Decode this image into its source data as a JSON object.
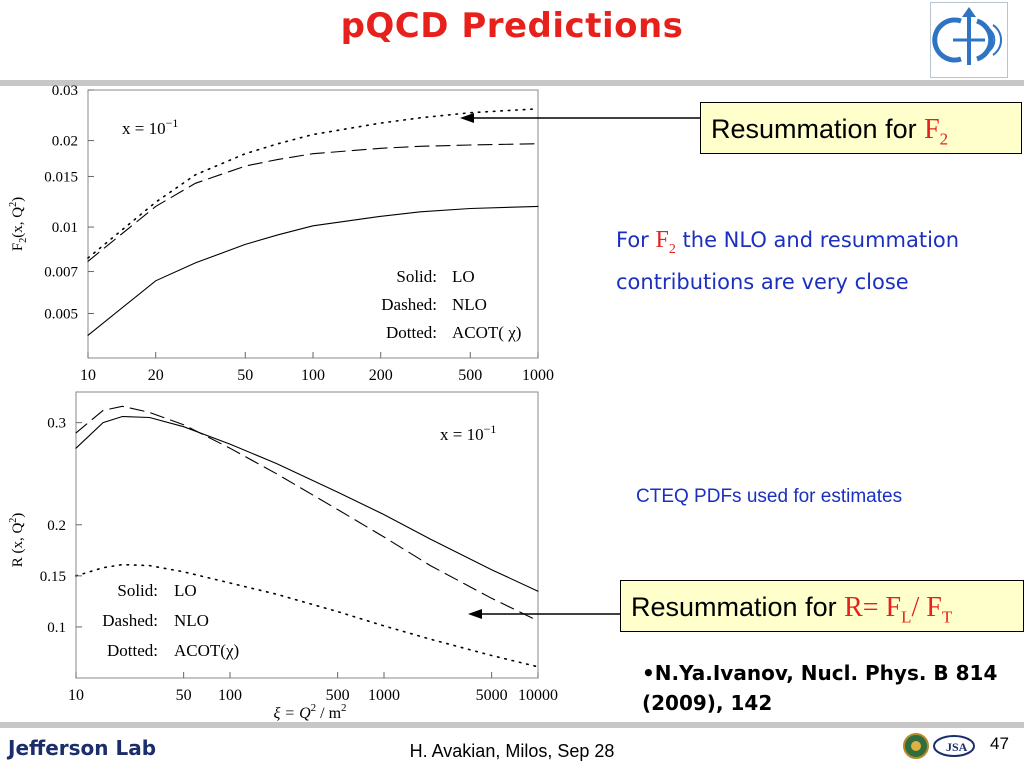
{
  "slide": {
    "title": "pQCD Predictions",
    "callout_top": {
      "prefix": "Resummation for ",
      "formula_main": "F",
      "formula_sub": "2"
    },
    "note_top": {
      "pre": "For ",
      "f_main": "F",
      "f_sub": "2",
      "post": "  the NLO and resummation contributions  are  very  close"
    },
    "note_mid": "CTEQ PDFs used for estimates",
    "callout_bottom": {
      "prefix": "Resummation for ",
      "r_eq": "R= F",
      "sub_l": "L",
      "slash": "/ F",
      "sub_t": "T"
    },
    "reference": {
      "line1": "•N.Ya.Ivanov, Nucl. Phys. B 814",
      "line2": "(2009), 142"
    },
    "footer": {
      "text": "H. Avakian, Milos,  Sep 28",
      "page": "47"
    },
    "logo_text": "Jefferson Lab",
    "colors": {
      "title": "#e8201c",
      "note": "#1b2fc0",
      "callout_bg": "#ffffcc"
    }
  },
  "chart_data": [
    {
      "type": "line",
      "ylabel_main": "F",
      "ylabel_sub": "2",
      "ylabel_rest": "(x, Q",
      "ylabel_sup": "2",
      "ylabel_end": ")",
      "x_scale": "log",
      "y_scale": "log",
      "xlim": [
        10,
        1000
      ],
      "ylim": [
        0.0035,
        0.03
      ],
      "x_ticks": [
        10,
        20,
        50,
        100,
        200,
        500,
        1000
      ],
      "x_tick_labels": [
        "10",
        "20",
        "50",
        "100",
        "200",
        "500",
        "1000"
      ],
      "y_ticks": [
        0.005,
        0.007,
        0.01,
        0.015,
        0.02,
        0.03
      ],
      "y_tick_labels": [
        "0.005",
        "0.007",
        "0.01",
        "0.015",
        "0.02",
        "0.03"
      ],
      "annotation": {
        "main": "x = 10",
        "sup": "−1"
      },
      "legend": {
        "placement": "bottom-right",
        "entries": [
          {
            "style": "Solid:",
            "label": "LO"
          },
          {
            "style": "Dashed:",
            "label": "NLO"
          },
          {
            "style": "Dotted:",
            "label": "ACOT( χ)"
          }
        ]
      },
      "series": [
        {
          "style": "solid",
          "x": [
            10,
            20,
            30,
            50,
            70,
            100,
            200,
            300,
            500,
            1000
          ],
          "values": [
            0.0042,
            0.0065,
            0.0075,
            0.0087,
            0.0094,
            0.0101,
            0.0109,
            0.0113,
            0.0116,
            0.0118
          ]
        },
        {
          "style": "dashed",
          "x": [
            10,
            20,
            30,
            50,
            70,
            100,
            200,
            300,
            500,
            1000
          ],
          "values": [
            0.0076,
            0.0118,
            0.0142,
            0.0163,
            0.0172,
            0.018,
            0.0188,
            0.0191,
            0.0193,
            0.0195
          ]
        },
        {
          "style": "dotted",
          "x": [
            10,
            20,
            30,
            50,
            70,
            100,
            200,
            300,
            500,
            1000
          ],
          "values": [
            0.0078,
            0.0122,
            0.0152,
            0.018,
            0.0195,
            0.021,
            0.023,
            0.024,
            0.025,
            0.0258
          ]
        }
      ]
    },
    {
      "type": "line",
      "ylabel_main": "R (x, Q",
      "ylabel_sup": "2",
      "ylabel_end": ")",
      "xlabel_main": "ξ = Q",
      "xlabel_sup1": "2",
      "xlabel_mid": " / m",
      "xlabel_sup2": "2",
      "x_scale": "log",
      "xlim": [
        10,
        10000
      ],
      "ylim": [
        0.05,
        0.33
      ],
      "x_ticks": [
        10,
        50,
        100,
        500,
        1000,
        5000,
        10000
      ],
      "x_tick_labels": [
        "10",
        "50",
        "100",
        "500",
        "1000",
        "5000",
        "10000"
      ],
      "y_ticks": [
        0.1,
        0.15,
        0.2,
        0.3
      ],
      "y_tick_labels": [
        "0.1",
        "0.15",
        "0.2",
        "0.3"
      ],
      "annotation": {
        "main": "x = 10",
        "sup": "−1"
      },
      "legend": {
        "placement": "bottom-left",
        "entries": [
          {
            "style": "Solid:",
            "label": "LO"
          },
          {
            "style": "Dashed:",
            "label": "NLO"
          },
          {
            "style": "Dotted:",
            "label": "ACOT(χ)"
          }
        ]
      },
      "series": [
        {
          "style": "solid",
          "x": [
            10,
            15,
            20,
            30,
            50,
            100,
            200,
            500,
            1000,
            2000,
            5000,
            10000
          ],
          "values": [
            0.275,
            0.3,
            0.306,
            0.305,
            0.296,
            0.279,
            0.26,
            0.232,
            0.21,
            0.186,
            0.156,
            0.135
          ]
        },
        {
          "style": "dashed",
          "x": [
            10,
            15,
            20,
            30,
            50,
            100,
            200,
            500,
            1000,
            2000,
            5000,
            10000
          ],
          "values": [
            0.29,
            0.312,
            0.316,
            0.31,
            0.298,
            0.275,
            0.25,
            0.215,
            0.188,
            0.16,
            0.128,
            0.106
          ]
        },
        {
          "style": "dotted",
          "x": [
            10,
            15,
            20,
            30,
            50,
            100,
            200,
            500,
            1000,
            2000,
            5000,
            10000
          ],
          "values": [
            0.15,
            0.158,
            0.161,
            0.16,
            0.154,
            0.143,
            0.132,
            0.115,
            0.101,
            0.088,
            0.072,
            0.061
          ]
        }
      ]
    }
  ]
}
